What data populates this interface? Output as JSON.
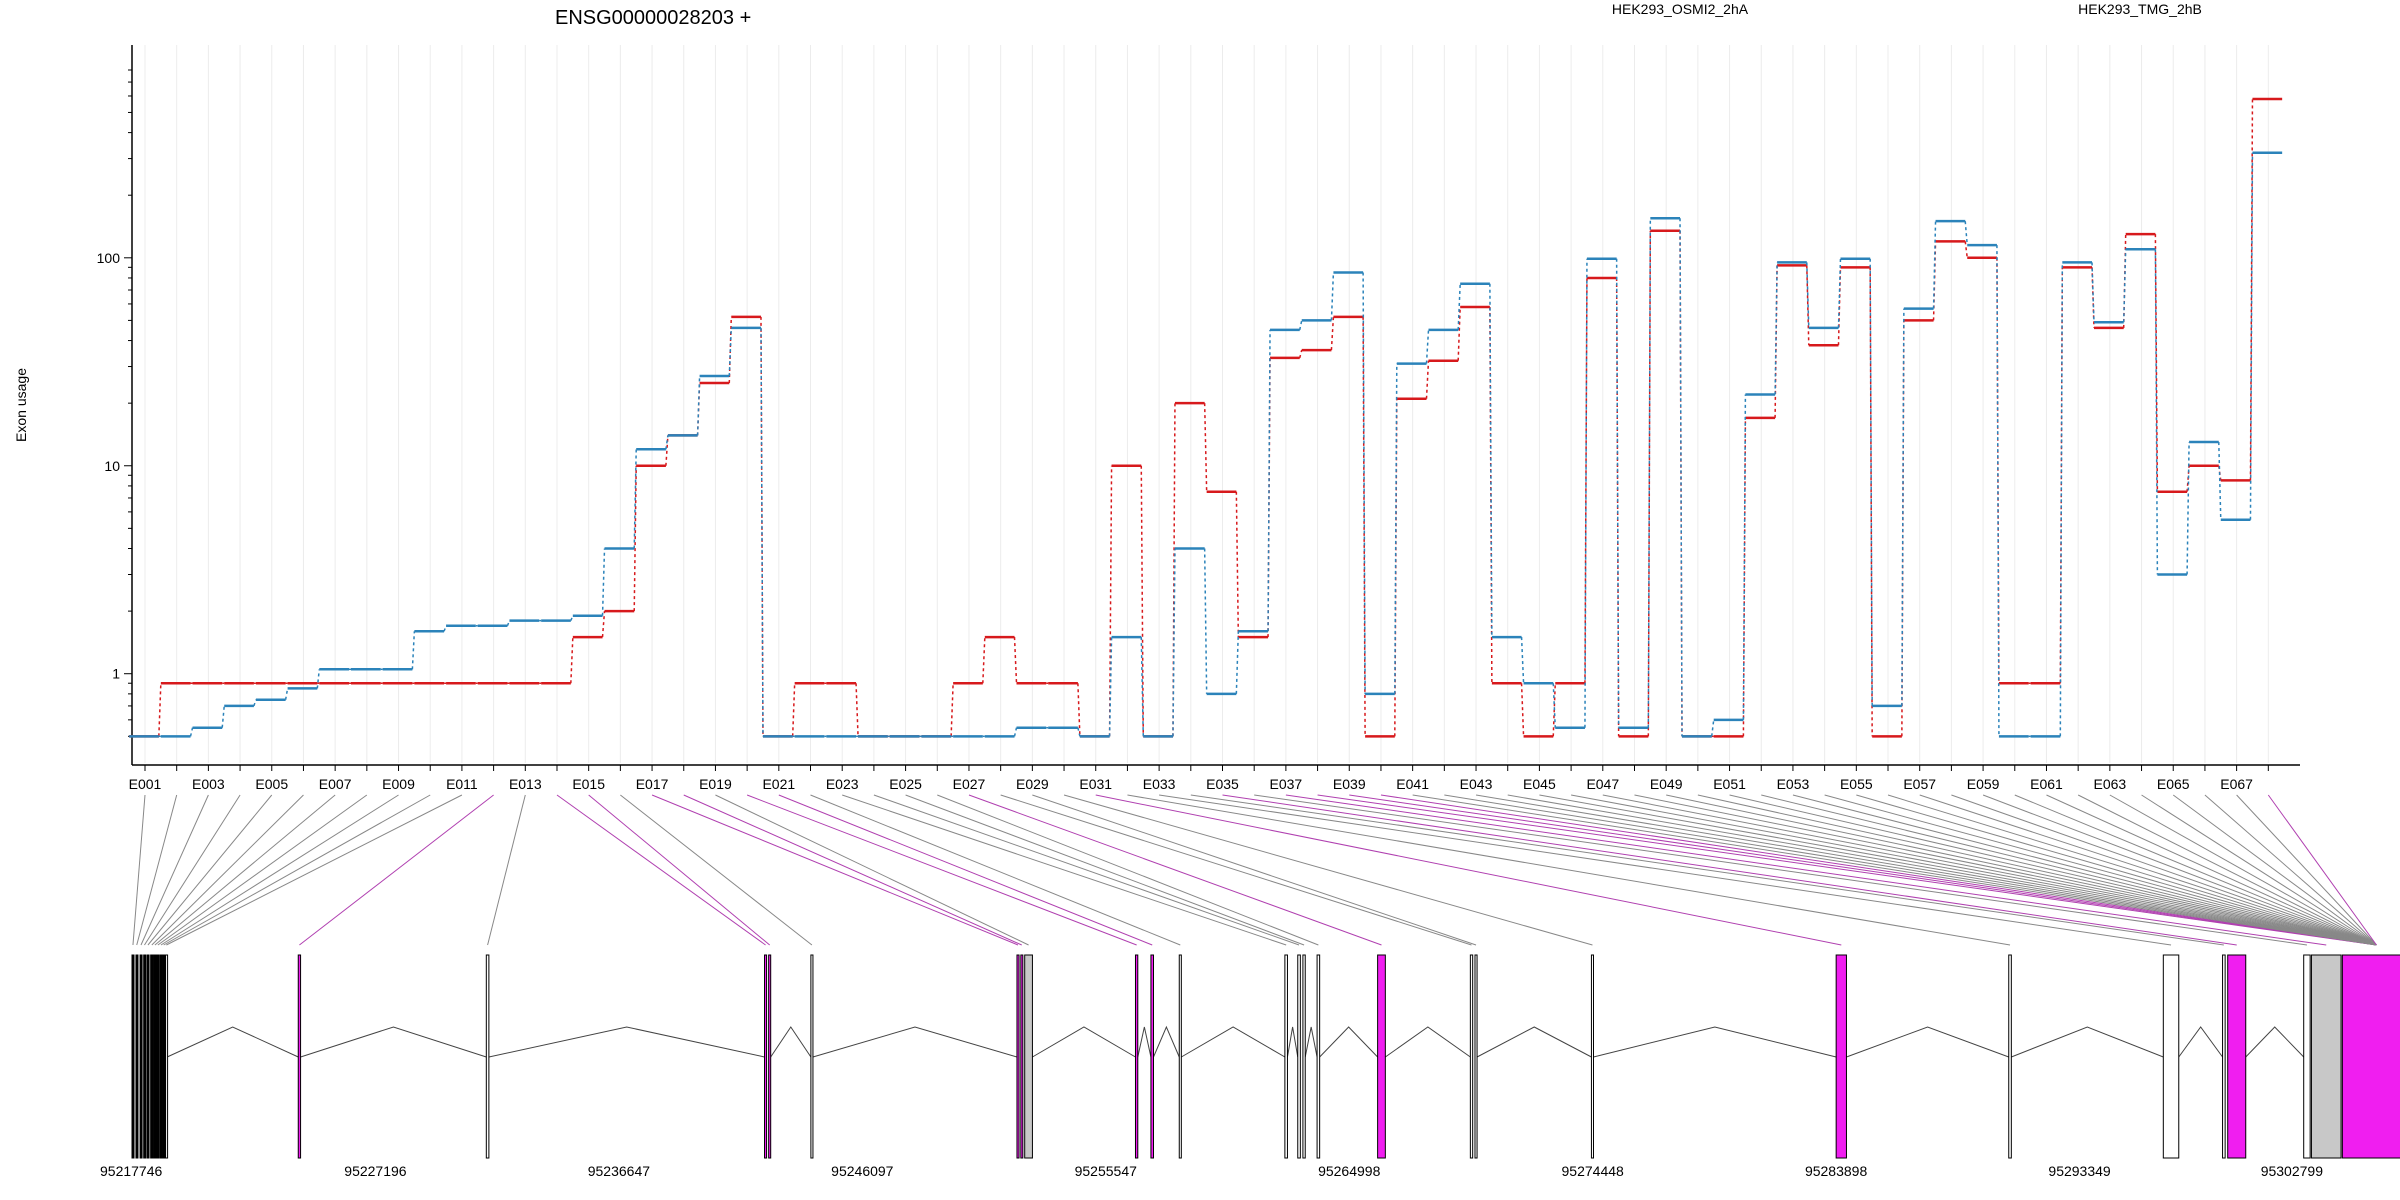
{
  "chart_data": {
    "type": "line",
    "title": "ENSG00000028203 +",
    "ylabel": "Exon usage",
    "xlabel": "",
    "y_scale": "log",
    "ylim": [
      0.48,
      800
    ],
    "y_ticks": [
      "1",
      "10",
      "100"
    ],
    "y_tick_values": [
      1,
      10,
      100
    ],
    "grid": "vertical",
    "legend": "top",
    "colors": {
      "series_a": "#d7191c",
      "series_b": "#2b83ba",
      "highlight": "#f01ef0",
      "gray_exon": "#c8c8c8",
      "exon_edge": "#000000"
    },
    "categories": [
      "E001",
      "E002",
      "E003",
      "E004",
      "E005",
      "E006",
      "E007",
      "E008",
      "E009",
      "E010",
      "E011",
      "E012",
      "E013",
      "E014",
      "E015",
      "E016",
      "E017",
      "E018",
      "E019",
      "E020",
      "E021",
      "E022",
      "E023",
      "E024",
      "E025",
      "E026",
      "E027",
      "E028",
      "E029",
      "E030",
      "E031",
      "E032",
      "E033",
      "E034",
      "E035",
      "E036",
      "E037",
      "E038",
      "E039",
      "E040",
      "E041",
      "E042",
      "E043",
      "E044",
      "E045",
      "E046",
      "E047",
      "E048",
      "E049",
      "E050",
      "E051",
      "E052",
      "E053",
      "E054",
      "E055",
      "E056",
      "E057",
      "E058",
      "E059",
      "E060",
      "E061",
      "E062",
      "E063",
      "E064",
      "E065",
      "E066",
      "E067",
      "E068"
    ],
    "x_tick_labels": [
      "E001",
      "E003",
      "E005",
      "E007",
      "E009",
      "E011",
      "E013",
      "E015",
      "E017",
      "E019",
      "E021",
      "E023",
      "E025",
      "E027",
      "E029",
      "E031",
      "E033",
      "E035",
      "E037",
      "E039",
      "E041",
      "E043",
      "E045",
      "E047",
      "E049",
      "E051",
      "E053",
      "E055",
      "E057",
      "E059",
      "E061",
      "E063",
      "E065",
      "E067"
    ],
    "series": [
      {
        "name": "HEK293_OSMI2_2hA",
        "color": "#d7191c",
        "values": [
          0.5,
          0.9,
          0.9,
          0.9,
          0.9,
          0.9,
          0.9,
          0.9,
          0.9,
          0.9,
          0.9,
          0.9,
          0.9,
          0.9,
          1.5,
          2,
          10,
          14,
          25,
          52,
          0.5,
          0.9,
          0.9,
          0.5,
          0.5,
          0.5,
          0.9,
          1.5,
          0.9,
          0.9,
          0.5,
          10,
          0.5,
          20,
          7.5,
          1.5,
          33,
          36,
          52,
          0.5,
          21,
          32,
          58,
          0.9,
          0.5,
          0.9,
          80,
          0.5,
          135,
          0.5,
          0.5,
          17,
          92,
          38,
          90,
          0.5,
          50,
          120,
          100,
          0.9,
          0.9,
          90,
          46,
          130,
          7.5,
          10,
          8.5,
          580
        ]
      },
      {
        "name": "HEK293_TMG_2hB",
        "color": "#2b83ba",
        "values": [
          0.5,
          0.5,
          0.55,
          0.7,
          0.75,
          0.85,
          1.05,
          1.05,
          1.05,
          1.6,
          1.7,
          1.7,
          1.8,
          1.8,
          1.9,
          4,
          12,
          14,
          27,
          46,
          0.5,
          0.5,
          0.5,
          0.5,
          0.5,
          0.5,
          0.5,
          0.5,
          0.55,
          0.55,
          0.5,
          1.5,
          0.5,
          4,
          0.8,
          1.6,
          45,
          50,
          85,
          0.8,
          31,
          45,
          75,
          1.5,
          0.9,
          0.55,
          99,
          0.55,
          155,
          0.5,
          0.6,
          22,
          95,
          46,
          99,
          0.7,
          57,
          150,
          115,
          0.5,
          0.5,
          95,
          49,
          110,
          3,
          13,
          5.5,
          320
        ]
      }
    ],
    "genomic_axis": {
      "tick_labels": [
        "95217746",
        "95227196",
        "95236647",
        "95246097",
        "95255547",
        "95264998",
        "95274448",
        "95283898",
        "95293349",
        "95302799"
      ],
      "tick_values": [
        95217746,
        95227196,
        95236647,
        95246097,
        95255547,
        95264998,
        95274448,
        95283898,
        95293349,
        95302799
      ]
    },
    "exons": [
      {
        "start": 95217746,
        "end": 95217820,
        "fill": "black"
      },
      {
        "start": 95217900,
        "end": 95217960,
        "fill": "black"
      },
      {
        "start": 95218060,
        "end": 95218130,
        "fill": "black"
      },
      {
        "start": 95218200,
        "end": 95218260,
        "fill": "black"
      },
      {
        "start": 95218330,
        "end": 95218400,
        "fill": "black"
      },
      {
        "start": 95218470,
        "end": 95218560,
        "fill": "black"
      },
      {
        "start": 95218590,
        "end": 95218680,
        "fill": "black"
      },
      {
        "start": 95218700,
        "end": 95218800,
        "fill": "black"
      },
      {
        "start": 95218840,
        "end": 95218900,
        "fill": "black"
      },
      {
        "start": 95218950,
        "end": 95219000,
        "fill": "black"
      },
      {
        "start": 95219050,
        "end": 95219110,
        "fill": "white"
      },
      {
        "start": 95224200,
        "end": 95224290,
        "fill": "magenta"
      },
      {
        "start": 95231500,
        "end": 95231600,
        "fill": "white"
      },
      {
        "start": 95242300,
        "end": 95242380,
        "fill": "magenta"
      },
      {
        "start": 95242460,
        "end": 95242540,
        "fill": "magenta"
      },
      {
        "start": 95244100,
        "end": 95244180,
        "fill": "white"
      },
      {
        "start": 95252100,
        "end": 95252180,
        "fill": "magenta"
      },
      {
        "start": 95252250,
        "end": 95252320,
        "fill": "magenta"
      },
      {
        "start": 95252400,
        "end": 95252700,
        "fill": "gray"
      },
      {
        "start": 95256700,
        "end": 95256790,
        "fill": "magenta"
      },
      {
        "start": 95257300,
        "end": 95257400,
        "fill": "magenta"
      },
      {
        "start": 95258400,
        "end": 95258480,
        "fill": "white"
      },
      {
        "start": 95262500,
        "end": 95262600,
        "fill": "white"
      },
      {
        "start": 95263000,
        "end": 95263100,
        "fill": "white"
      },
      {
        "start": 95263200,
        "end": 95263290,
        "fill": "white"
      },
      {
        "start": 95263750,
        "end": 95263850,
        "fill": "white"
      },
      {
        "start": 95266100,
        "end": 95266400,
        "fill": "magenta"
      },
      {
        "start": 95269700,
        "end": 95269790,
        "fill": "white"
      },
      {
        "start": 95269880,
        "end": 95269960,
        "fill": "white"
      },
      {
        "start": 95274400,
        "end": 95274480,
        "fill": "white"
      },
      {
        "start": 95283900,
        "end": 95284300,
        "fill": "magenta"
      },
      {
        "start": 95290600,
        "end": 95290700,
        "fill": "white"
      },
      {
        "start": 95296600,
        "end": 95297200,
        "fill": "white"
      },
      {
        "start": 95298900,
        "end": 95299000,
        "fill": "white"
      },
      {
        "start": 95299100,
        "end": 95299800,
        "fill": "magenta"
      },
      {
        "start": 95302050,
        "end": 95302300,
        "fill": "white"
      },
      {
        "start": 95302350,
        "end": 95303500,
        "fill": "gray"
      },
      {
        "start": 95303550,
        "end": 95306200,
        "fill": "magenta"
      }
    ]
  }
}
